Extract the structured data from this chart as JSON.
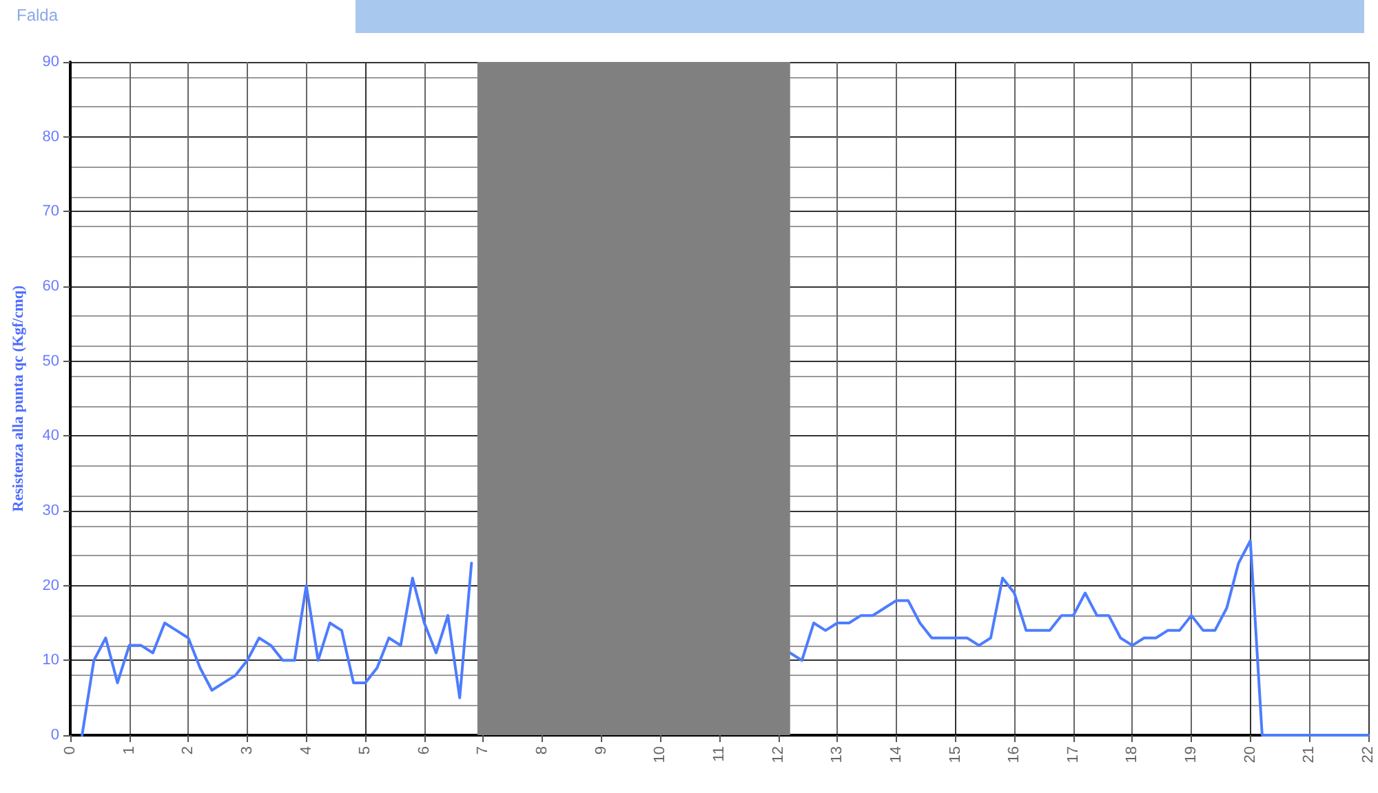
{
  "chart_data": {
    "type": "line",
    "ylabel": "Resistenza alla punta qc (Kgf/cmq)",
    "x": [
      0.2,
      0.4,
      0.6,
      0.8,
      1.0,
      1.2,
      1.4,
      1.6,
      1.8,
      2.0,
      2.2,
      2.4,
      2.6,
      2.8,
      3.0,
      3.2,
      3.4,
      3.6,
      3.8,
      4.0,
      4.2,
      4.4,
      4.6,
      4.8,
      5.0,
      5.2,
      5.4,
      5.6,
      5.8,
      6.0,
      6.2,
      6.4,
      6.6,
      6.8,
      7.0,
      12.2,
      12.4,
      12.6,
      12.8,
      13.0,
      13.2,
      13.4,
      13.6,
      13.8,
      14.0,
      14.2,
      14.4,
      14.6,
      14.8,
      15.0,
      15.2,
      15.4,
      15.6,
      15.8,
      16.0,
      16.2,
      16.4,
      16.6,
      16.8,
      17.0,
      17.2,
      17.4,
      17.6,
      17.8,
      18.0,
      18.2,
      18.4,
      18.6,
      18.8,
      19.0,
      19.2,
      19.4,
      19.6,
      19.8,
      20.0,
      20.2,
      22.0
    ],
    "series": [
      {
        "color": "#4d7cff",
        "values": [
          0,
          10,
          13,
          7,
          12,
          12,
          11,
          15,
          14,
          13,
          9,
          6,
          7,
          8,
          10,
          13,
          12,
          10,
          10,
          20,
          10,
          15,
          14,
          7,
          7,
          9,
          13,
          12,
          21,
          15,
          11,
          16,
          5,
          23,
          null,
          11,
          10,
          15,
          14,
          15,
          15,
          16,
          16,
          17,
          18,
          18,
          15,
          13,
          13,
          13,
          13,
          12,
          13,
          21,
          19,
          14,
          14,
          14,
          16,
          16,
          19,
          16,
          16,
          13,
          12,
          13,
          13,
          14,
          14,
          16,
          14,
          14,
          17,
          23,
          26,
          0,
          0
        ]
      }
    ],
    "xlim": [
      0,
      22
    ],
    "xticks": [
      0,
      1,
      2,
      3,
      4,
      5,
      6,
      7,
      8,
      9,
      10,
      11,
      12,
      13,
      14,
      15,
      16,
      17,
      18,
      19,
      20,
      21,
      22
    ],
    "ylim": [
      0,
      90
    ],
    "yticks": [
      0,
      10,
      20,
      30,
      40,
      50,
      60,
      70,
      80,
      90
    ],
    "bands": [
      {
        "axis": "x",
        "from": 6.9,
        "to": 12.2,
        "color": "#808080"
      }
    ],
    "annotations": [
      "Falda"
    ],
    "grid": true,
    "marker": "none",
    "line_style": "solid"
  }
}
